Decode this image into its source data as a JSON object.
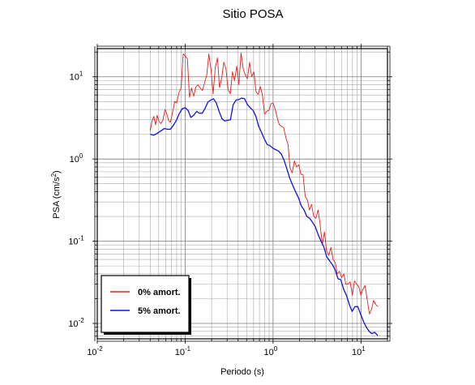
{
  "chart_data": {
    "type": "line",
    "title": "Sitio POSA",
    "xlabel": "Periodo (s)",
    "ylabel": "PSA (cm/s",
    "ylabel_sup": "2",
    "ylabel_tail": ")",
    "x_scale": "log",
    "y_scale": "log",
    "xlim": [
      0.01,
      20
    ],
    "ylim": [
      0.0065,
      22
    ],
    "grid": true,
    "legend_position": "bottom-left",
    "x_ticks": [
      {
        "base": "10",
        "exp": "-2"
      },
      {
        "base": "10",
        "exp": "-1"
      },
      {
        "base": "10",
        "exp": "0"
      },
      {
        "base": "10",
        "exp": "1"
      }
    ],
    "y_ticks": [
      {
        "base": "10",
        "exp": "-2"
      },
      {
        "base": "10",
        "exp": "-1"
      },
      {
        "base": "10",
        "exp": "0"
      },
      {
        "base": "10",
        "exp": "1"
      }
    ],
    "series": [
      {
        "name": "0% amort.",
        "color": "#ee1c1c",
        "points": [
          [
            0.04,
            2.2
          ],
          [
            0.042,
            2.9
          ],
          [
            0.044,
            3.3
          ],
          [
            0.046,
            2.6
          ],
          [
            0.048,
            3.4
          ],
          [
            0.05,
            2.9
          ],
          [
            0.053,
            2.7
          ],
          [
            0.056,
            3.0
          ],
          [
            0.059,
            4.0
          ],
          [
            0.062,
            3.5
          ],
          [
            0.065,
            2.9
          ],
          [
            0.068,
            2.8
          ],
          [
            0.072,
            3.7
          ],
          [
            0.076,
            5.0
          ],
          [
            0.08,
            4.8
          ],
          [
            0.085,
            6.4
          ],
          [
            0.09,
            7.4
          ],
          [
            0.095,
            19.0
          ],
          [
            0.1,
            18.0
          ],
          [
            0.106,
            16.5
          ],
          [
            0.112,
            5.6
          ],
          [
            0.118,
            7.3
          ],
          [
            0.125,
            5.8
          ],
          [
            0.132,
            7.5
          ],
          [
            0.14,
            8.0
          ],
          [
            0.148,
            7.3
          ],
          [
            0.157,
            6.8
          ],
          [
            0.166,
            8.4
          ],
          [
            0.176,
            10.5
          ],
          [
            0.186,
            19.0
          ],
          [
            0.197,
            12.0
          ],
          [
            0.208,
            6.2
          ],
          [
            0.22,
            13.0
          ],
          [
            0.233,
            17.0
          ],
          [
            0.246,
            7.4
          ],
          [
            0.26,
            9.5
          ],
          [
            0.275,
            15.0
          ],
          [
            0.291,
            12.5
          ],
          [
            0.308,
            7.0
          ],
          [
            0.326,
            6.2
          ],
          [
            0.345,
            11.5
          ],
          [
            0.365,
            9.0
          ],
          [
            0.386,
            13.5
          ],
          [
            0.408,
            8.0
          ],
          [
            0.432,
            19.5
          ],
          [
            0.457,
            12.5
          ],
          [
            0.483,
            10.5
          ],
          [
            0.511,
            9.5
          ],
          [
            0.54,
            15.0
          ],
          [
            0.571,
            10.0
          ],
          [
            0.604,
            11.5
          ],
          [
            0.639,
            6.6
          ],
          [
            0.676,
            6.1
          ],
          [
            0.715,
            7.6
          ],
          [
            0.756,
            6.0
          ],
          [
            0.8,
            3.5
          ],
          [
            0.846,
            3.8
          ],
          [
            0.895,
            3.9
          ],
          [
            0.947,
            4.7
          ],
          [
            1.0,
            4.8
          ],
          [
            1.06,
            4.0
          ],
          [
            1.12,
            3.1
          ],
          [
            1.18,
            2.6
          ],
          [
            1.25,
            2.5
          ],
          [
            1.32,
            2.4
          ],
          [
            1.4,
            1.8
          ],
          [
            1.48,
            1.5
          ],
          [
            1.56,
            0.77
          ],
          [
            1.65,
            0.68
          ],
          [
            1.75,
            0.95
          ],
          [
            1.85,
            0.8
          ],
          [
            1.96,
            0.85
          ],
          [
            2.07,
            0.65
          ],
          [
            2.19,
            0.65
          ],
          [
            2.32,
            0.35
          ],
          [
            2.45,
            0.32
          ],
          [
            2.59,
            0.24
          ],
          [
            2.74,
            0.28
          ],
          [
            2.9,
            0.2
          ],
          [
            3.07,
            0.19
          ],
          [
            3.25,
            0.24
          ],
          [
            3.43,
            0.16
          ],
          [
            3.63,
            0.09
          ],
          [
            3.84,
            0.13
          ],
          [
            4.06,
            0.077
          ],
          [
            4.3,
            0.067
          ],
          [
            4.55,
            0.084
          ],
          [
            4.81,
            0.06
          ],
          [
            5.09,
            0.055
          ],
          [
            5.38,
            0.04
          ],
          [
            5.69,
            0.043
          ],
          [
            6.02,
            0.036
          ],
          [
            6.37,
            0.04
          ],
          [
            6.73,
            0.03
          ],
          [
            7.12,
            0.03
          ],
          [
            7.53,
            0.032
          ],
          [
            7.97,
            0.022
          ],
          [
            8.43,
            0.033
          ],
          [
            8.91,
            0.03
          ],
          [
            9.43,
            0.028
          ],
          [
            9.97,
            0.022
          ],
          [
            10.5,
            0.026
          ],
          [
            11.1,
            0.029
          ],
          [
            11.8,
            0.019
          ],
          [
            12.5,
            0.013
          ],
          [
            13.2,
            0.015
          ],
          [
            13.9,
            0.019
          ],
          [
            14.7,
            0.017
          ],
          [
            15.6,
            0.016
          ]
        ]
      },
      {
        "name": "5% amort.",
        "color": "#1010e6",
        "points": [
          [
            0.04,
            2.0
          ],
          [
            0.044,
            1.95
          ],
          [
            0.048,
            2.05
          ],
          [
            0.053,
            2.2
          ],
          [
            0.058,
            2.35
          ],
          [
            0.063,
            2.3
          ],
          [
            0.068,
            2.3
          ],
          [
            0.074,
            2.6
          ],
          [
            0.08,
            3.0
          ],
          [
            0.086,
            3.6
          ],
          [
            0.093,
            4.1
          ],
          [
            0.1,
            4.2
          ],
          [
            0.108,
            3.9
          ],
          [
            0.116,
            3.2
          ],
          [
            0.125,
            3.4
          ],
          [
            0.135,
            3.8
          ],
          [
            0.145,
            3.6
          ],
          [
            0.156,
            3.6
          ],
          [
            0.168,
            4.1
          ],
          [
            0.181,
            4.9
          ],
          [
            0.195,
            5.2
          ],
          [
            0.21,
            5.4
          ],
          [
            0.226,
            4.8
          ],
          [
            0.243,
            3.8
          ],
          [
            0.262,
            3.1
          ],
          [
            0.282,
            2.9
          ],
          [
            0.304,
            2.95
          ],
          [
            0.327,
            3.0
          ],
          [
            0.352,
            4.6
          ],
          [
            0.379,
            5.2
          ],
          [
            0.408,
            5.3
          ],
          [
            0.44,
            5.5
          ],
          [
            0.474,
            5.4
          ],
          [
            0.51,
            4.6
          ],
          [
            0.549,
            4.2
          ],
          [
            0.591,
            3.9
          ],
          [
            0.637,
            3.3
          ],
          [
            0.686,
            2.5
          ],
          [
            0.739,
            2.1
          ],
          [
            0.796,
            1.75
          ],
          [
            0.857,
            1.5
          ],
          [
            0.923,
            1.45
          ],
          [
            0.994,
            1.35
          ],
          [
            1.07,
            1.3
          ],
          [
            1.15,
            1.25
          ],
          [
            1.24,
            1.15
          ],
          [
            1.34,
            0.95
          ],
          [
            1.44,
            0.75
          ],
          [
            1.55,
            0.58
          ],
          [
            1.67,
            0.48
          ],
          [
            1.8,
            0.4
          ],
          [
            1.94,
            0.34
          ],
          [
            2.09,
            0.27
          ],
          [
            2.25,
            0.24
          ],
          [
            2.42,
            0.2
          ],
          [
            2.61,
            0.19
          ],
          [
            2.81,
            0.17
          ],
          [
            3.02,
            0.15
          ],
          [
            3.26,
            0.12
          ],
          [
            3.51,
            0.1
          ],
          [
            3.78,
            0.085
          ],
          [
            4.07,
            0.065
          ],
          [
            4.38,
            0.058
          ],
          [
            4.72,
            0.052
          ],
          [
            5.08,
            0.045
          ],
          [
            5.47,
            0.035
          ],
          [
            5.89,
            0.034
          ],
          [
            6.35,
            0.026
          ],
          [
            6.83,
            0.022
          ],
          [
            7.36,
            0.017
          ],
          [
            7.92,
            0.014
          ],
          [
            8.53,
            0.016
          ],
          [
            9.19,
            0.016
          ],
          [
            9.9,
            0.013
          ],
          [
            10.7,
            0.0105
          ],
          [
            11.5,
            0.009
          ],
          [
            12.4,
            0.008
          ],
          [
            13.3,
            0.0075
          ],
          [
            14.3,
            0.0078
          ],
          [
            15.5,
            0.0071
          ]
        ]
      }
    ]
  }
}
